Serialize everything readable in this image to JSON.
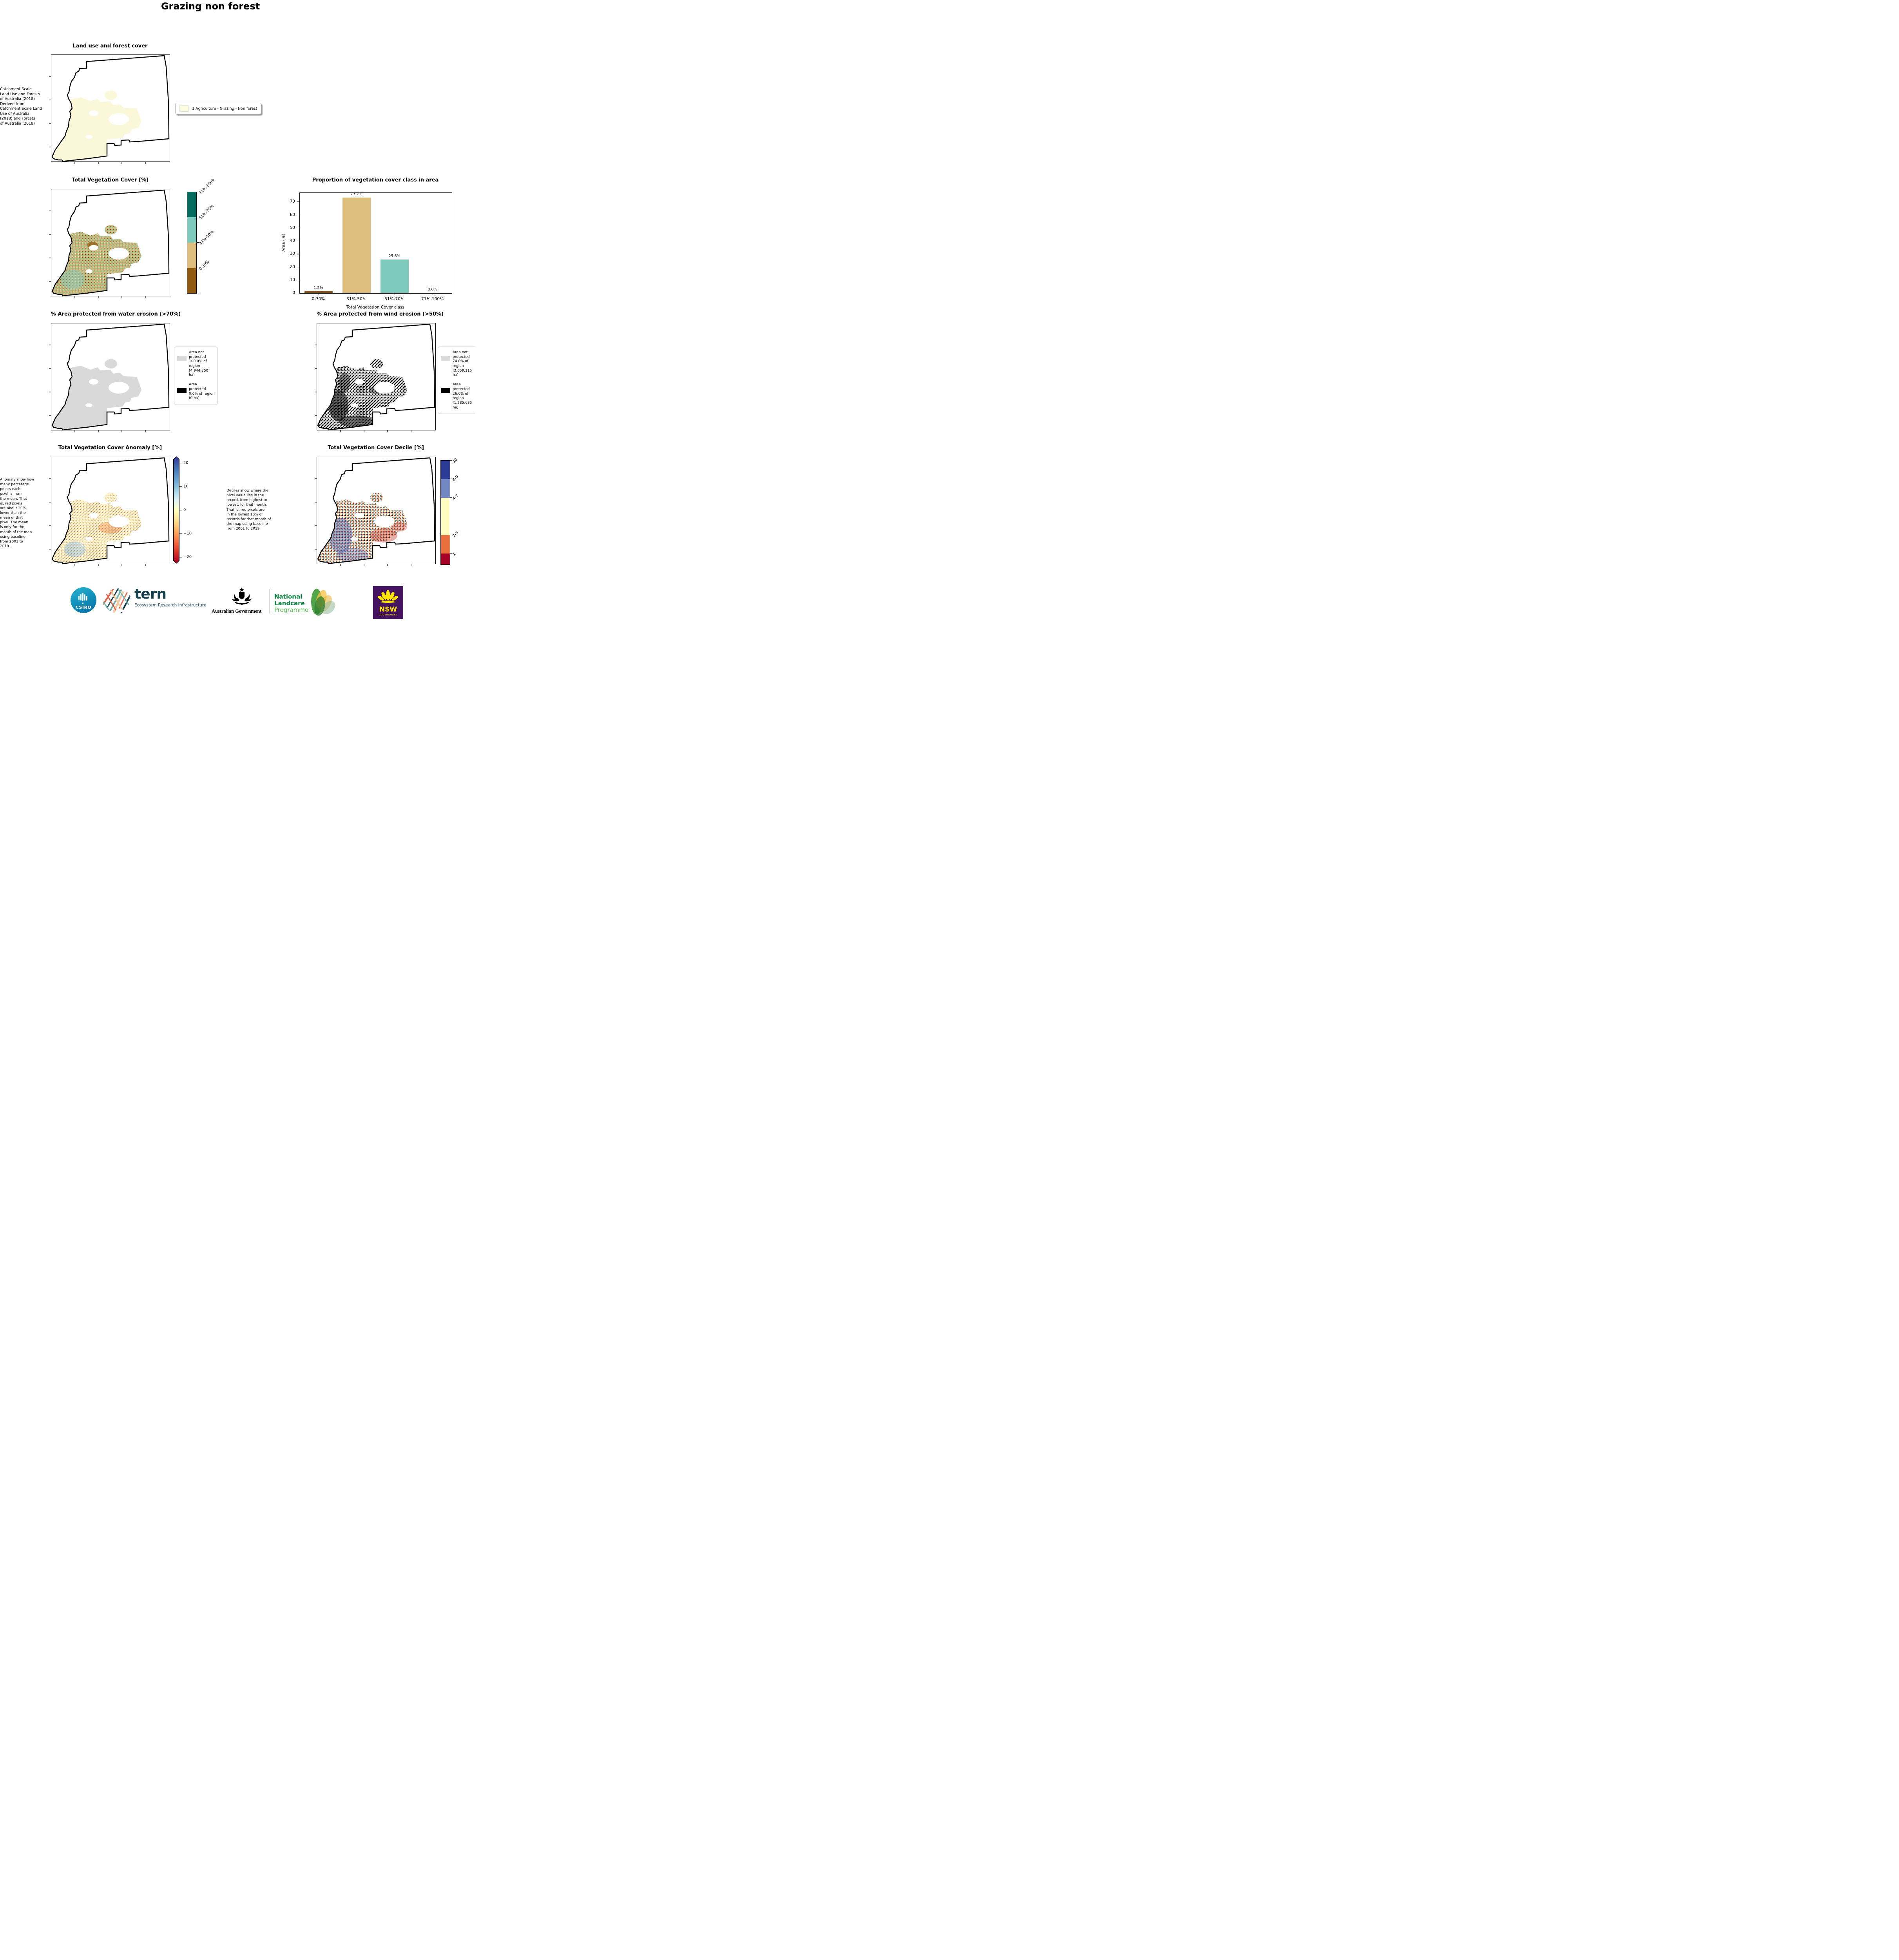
{
  "page": {
    "title": "Grazing non forest"
  },
  "palette": {
    "landuse_fill": "#fbf8da",
    "veg_classes": [
      "#8f5a0f",
      "#ddbe7d",
      "#7ecabd",
      "#056b60"
    ],
    "gray_area": "#d9d9d9",
    "black_area": "#000000",
    "decile_colors": [
      "#2d3b97",
      "#7286c1",
      "#fdfdc0",
      "#e8703e",
      "#a50026"
    ],
    "anomaly_top": "#313695",
    "anomaly_bottom": "#a50026"
  },
  "panels": {
    "landuse": {
      "title": "Land use and forest cover",
      "side_text": " Catchment Scale\nLand Use and Forests\nof Australia (2018)\nDerived from\nCatchment Scale Land\nUse of Australia\n(2018) and Forests\nof Australia (2018)",
      "legend": {
        "label": "1 Agriculture - Grazing - Non forest",
        "swatch_color": "#fdfce1"
      }
    },
    "vegcover": {
      "title": "Total Vegetation Cover [%]",
      "colorbar": {
        "labels": [
          "71%-100%",
          "51%-70%",
          "31%-50%",
          "0-30%"
        ],
        "colors": [
          "#056b60",
          "#7ecabd",
          "#ddbe7d",
          "#8f5a0f"
        ]
      }
    },
    "water": {
      "title": "% Area protected from water erosion (>70%)",
      "legend": [
        {
          "label": "Area not protected 100.0% of region (4,944,750 ha)",
          "color": "#d9d9d9"
        },
        {
          "label": "Area protected 0.0% of region (0 ha)",
          "color": "#000000"
        }
      ]
    },
    "wind": {
      "title": "% Area protected from wind erosion (>50%)",
      "legend": [
        {
          "label": "Area not protected 74.0% of region (3,659,115 ha)",
          "color": "#d9d9d9"
        },
        {
          "label": "Area protected 26.0% of region (1,285,635 ha)",
          "color": "#000000"
        }
      ]
    },
    "anomaly": {
      "title": "Total Vegetation Cover Anomaly [%]",
      "note": "Anomaly show how\nmany percetage\npoints each\npixel is from\nthe mean. That\nis, red pixels\nare about 20%\nlower than the\nmean of that\npixel. The mean\nis only for the\nmonth of the map\nusing baseline\nfrom 2001 to\n2019.",
      "colorbar_ticks": [
        "20",
        "10",
        "0",
        "−10",
        "−20"
      ]
    },
    "decile": {
      "title": "Total Vegetation Cover Decile [%]",
      "note": "Deciles show where the\npixel value lies in the\nrecord, from highest to\nlowest, for that month.\nThat is, red pixels are\nin the lowest 10% of\nrecords for that month of\nthe map using baseline\nfrom 2001 to 2019.",
      "colorbar": {
        "labels": [
          "10",
          "8-9",
          "4-7",
          "2-3",
          "1"
        ],
        "colors": [
          "#2d3b97",
          "#7286c1",
          "#fdfdc0",
          "#e8703e",
          "#a50026"
        ]
      }
    }
  },
  "chart_data": {
    "type": "bar",
    "title": "Proportion of vegetation cover class in area",
    "categories": [
      "0-30%",
      "31%-50%",
      "51%-70%",
      "71%-100%"
    ],
    "values": [
      1.2,
      73.2,
      25.6,
      0.0
    ],
    "bar_labels": [
      "1.2%",
      "73.2%",
      "25.6%",
      "0.0%"
    ],
    "bar_colors": [
      "#8f5a0f",
      "#ddbe7d",
      "#7ecabd",
      "#056b60"
    ],
    "xlabel": "Total Vegetation Cover class",
    "ylabel": "Area (%)",
    "ylim": [
      0,
      77
    ],
    "yticks": [
      0,
      10,
      20,
      30,
      40,
      50,
      60,
      70
    ],
    "grid": false,
    "legend_position": "none"
  },
  "footer": {
    "csiro_label": "CSIRO",
    "tern_label": "tern",
    "tern_sub": "Ecosystem Research Infrastructure",
    "aus_gov_label": "Australian Government",
    "landcare_lines": [
      "National",
      "Landcare",
      "Programme"
    ],
    "nsw_label": "NSW",
    "nsw_sub": "GOVERNMENT"
  }
}
